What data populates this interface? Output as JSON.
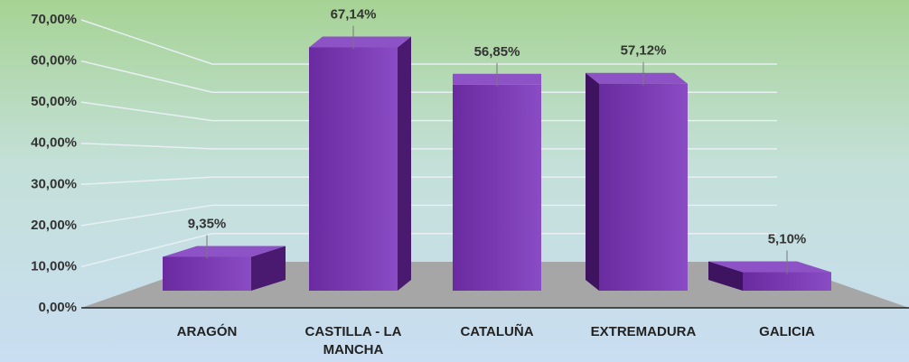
{
  "chart_data": {
    "type": "bar3d",
    "categories": [
      "ARAGÓN",
      "CASTILLA - LA MANCHA",
      "CATALUÑA",
      "EXTREMADURA",
      "GALICIA"
    ],
    "values": [
      9.35,
      67.14,
      56.85,
      57.12,
      5.1
    ],
    "value_labels": [
      "9,35%",
      "67,14%",
      "56,85%",
      "57,12%",
      "5,10%"
    ],
    "color": "#7232a8",
    "ylim": [
      0,
      70
    ],
    "yticks": [
      {
        "value": 0,
        "label": "0,00%"
      },
      {
        "value": 10,
        "label": "10,00%"
      },
      {
        "value": 20,
        "label": "20,00%"
      },
      {
        "value": 30,
        "label": "30,00%"
      },
      {
        "value": 40,
        "label": "40,00%"
      },
      {
        "value": 50,
        "label": "50,00%"
      },
      {
        "value": 60,
        "label": "60,00%"
      },
      {
        "value": 70,
        "label": "70,00%"
      }
    ],
    "grid": true
  }
}
